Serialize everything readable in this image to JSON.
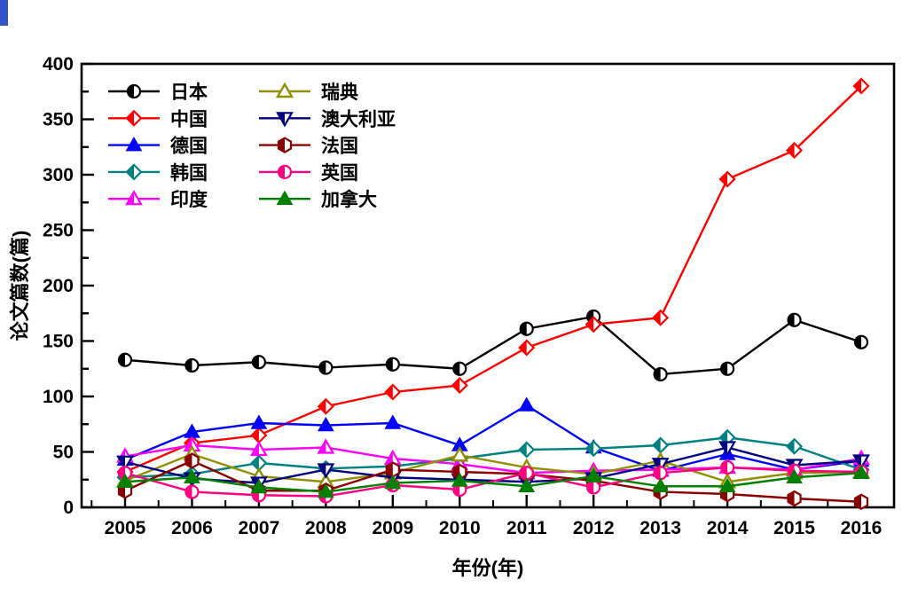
{
  "window": {
    "corner_fragment_color": "#3355cc"
  },
  "chart_data": {
    "type": "line",
    "title": "",
    "xlabel": "年份(年)",
    "ylabel": "论文篇数(篇)",
    "x": [
      2005,
      2006,
      2007,
      2008,
      2009,
      2010,
      2011,
      2012,
      2013,
      2014,
      2015,
      2016
    ],
    "ylim": [
      0,
      400
    ],
    "ytick_major": 50,
    "ytick_minor": 25,
    "grid": false,
    "legend_position": "top-left inside plot, two columns",
    "axis_color": "#000000",
    "series": [
      {
        "name": "日本",
        "color": "#000000",
        "marker": "half-filled-circle",
        "values": [
          133,
          128,
          131,
          126,
          129,
          125,
          161,
          172,
          120,
          125,
          169,
          149
        ]
      },
      {
        "name": "中国",
        "color": "#ff0000",
        "marker": "half-filled-diamond",
        "values": [
          32,
          58,
          65,
          91,
          104,
          110,
          144,
          165,
          171,
          296,
          322,
          380
        ]
      },
      {
        "name": "德国",
        "color": "#0000ff",
        "marker": "filled-triangle-up",
        "values": [
          43,
          68,
          76,
          74,
          76,
          56,
          92,
          54,
          33,
          48,
          34,
          42
        ]
      },
      {
        "name": "韩国",
        "color": "#008080",
        "marker": "half-filled-diamond",
        "values": [
          27,
          30,
          40,
          35,
          37,
          44,
          52,
          53,
          56,
          63,
          55,
          34
        ]
      },
      {
        "name": "印度",
        "color": "#ff00ff",
        "marker": "half-filled-triangle-up",
        "values": [
          46,
          56,
          52,
          54,
          44,
          39,
          31,
          33,
          34,
          36,
          34,
          44
        ]
      },
      {
        "name": "瑞典",
        "color": "#8f8f00",
        "marker": "open-triangle-up",
        "values": [
          24,
          48,
          28,
          23,
          31,
          47,
          36,
          30,
          42,
          23,
          31,
          32
        ]
      },
      {
        "name": "澳大利亚",
        "color": "#000080",
        "marker": "half-filled-triangle-down",
        "values": [
          41,
          26,
          22,
          34,
          27,
          25,
          23,
          26,
          39,
          54,
          38,
          42
        ]
      },
      {
        "name": "法国",
        "color": "#8b0000",
        "marker": "half-filled-hexagon",
        "values": [
          15,
          42,
          15,
          15,
          34,
          32,
          30,
          24,
          14,
          12,
          8,
          5
        ]
      },
      {
        "name": "英国",
        "color": "#ff0080",
        "marker": "half-filled-circle",
        "values": [
          31,
          14,
          11,
          10,
          20,
          16,
          31,
          18,
          31,
          36,
          33,
          32
        ]
      },
      {
        "name": "加拿大",
        "color": "#008000",
        "marker": "filled-triangle-up",
        "values": [
          23,
          27,
          18,
          14,
          22,
          24,
          19,
          28,
          19,
          19,
          27,
          31
        ]
      }
    ]
  }
}
